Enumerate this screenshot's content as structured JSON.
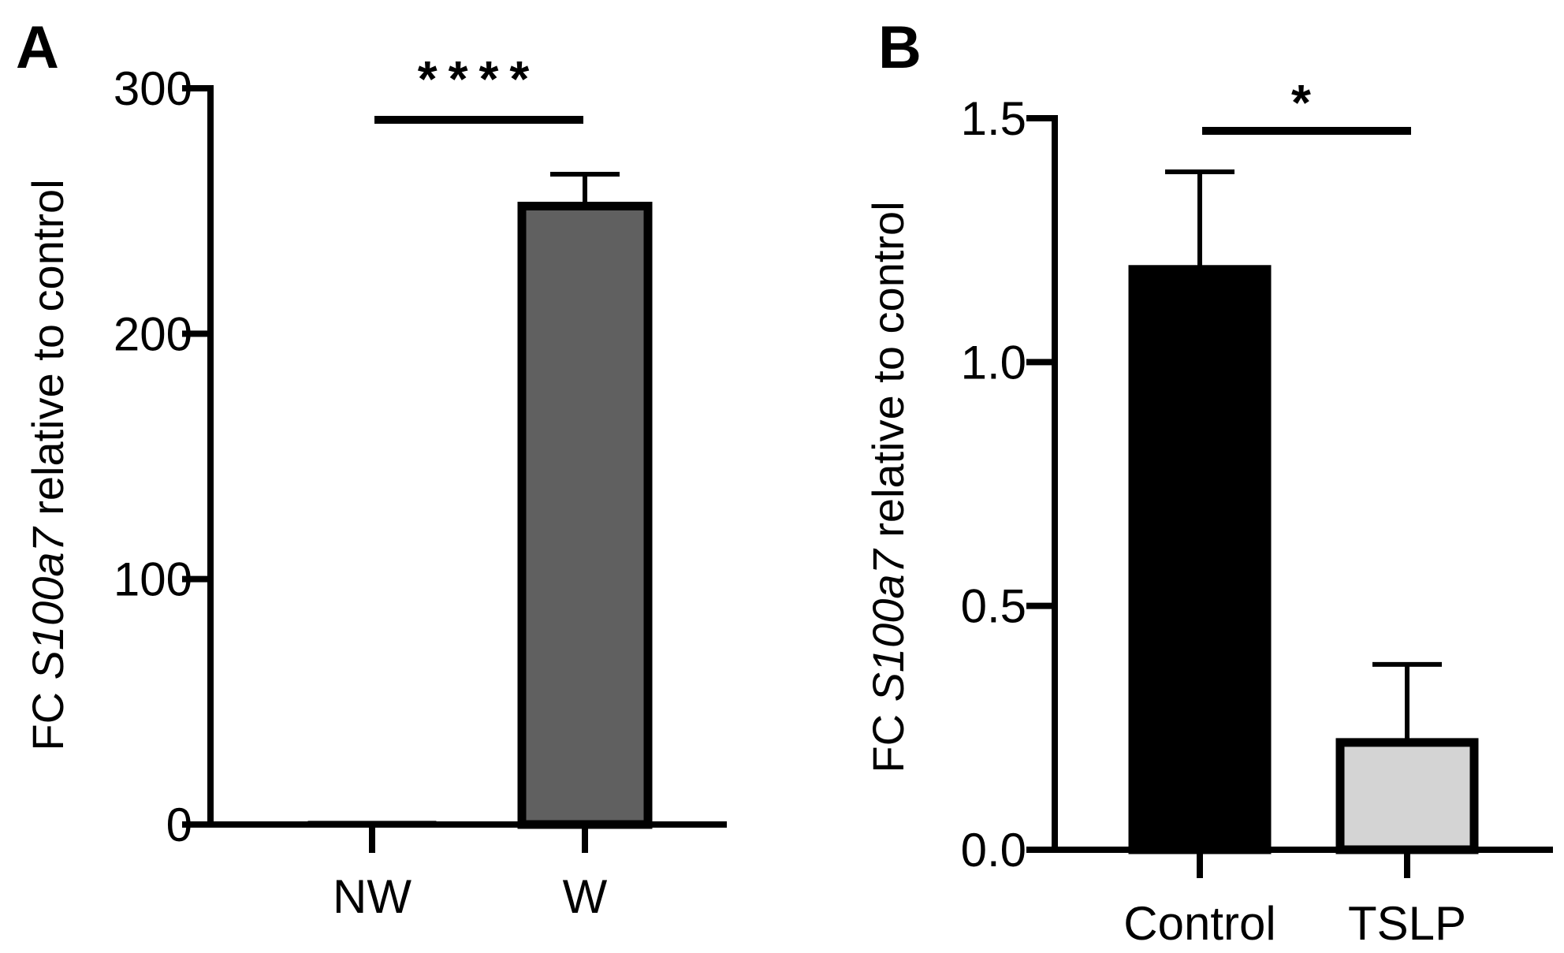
{
  "colors": {
    "axis": "#000000",
    "bar_w": "#606060",
    "bar_control": "#000000",
    "bar_tslp": "#d4d4d4",
    "bar_outline": "#000000"
  },
  "chart_data": [
    {
      "type": "bar",
      "panel": "A",
      "categories": [
        "NW",
        "W"
      ],
      "values": [
        1,
        252
      ],
      "error_upper": [
        0,
        13
      ],
      "bar_colors": [
        "#606060",
        "#606060"
      ],
      "ylabel_prefix": "FC ",
      "ylabel_gene": "S100a7",
      "ylabel_suffix": " relative to control",
      "ylim": [
        0,
        300
      ],
      "yticks": [
        0,
        100,
        200,
        300
      ],
      "ytick_labels": [
        "0",
        "100",
        "200",
        "300"
      ],
      "significance": {
        "from": "NW",
        "to": "W",
        "label": "****"
      },
      "grid": false,
      "legend": "none"
    },
    {
      "type": "bar",
      "panel": "B",
      "categories": [
        "Control",
        "TSLP"
      ],
      "values": [
        1.19,
        0.22
      ],
      "error_upper": [
        0.2,
        0.16
      ],
      "bar_colors": [
        "#000000",
        "#d4d4d4"
      ],
      "ylabel_prefix": "FC ",
      "ylabel_gene": "S100a7",
      "ylabel_suffix": " relative to control",
      "ylim": [
        0,
        1.5
      ],
      "yticks": [
        0.0,
        0.5,
        1.0,
        1.5
      ],
      "ytick_labels": [
        "0.0",
        "0.5",
        "1.0",
        "1.5"
      ],
      "significance": {
        "from": "Control",
        "to": "TSLP",
        "label": "*"
      },
      "grid": false,
      "legend": "none"
    }
  ]
}
